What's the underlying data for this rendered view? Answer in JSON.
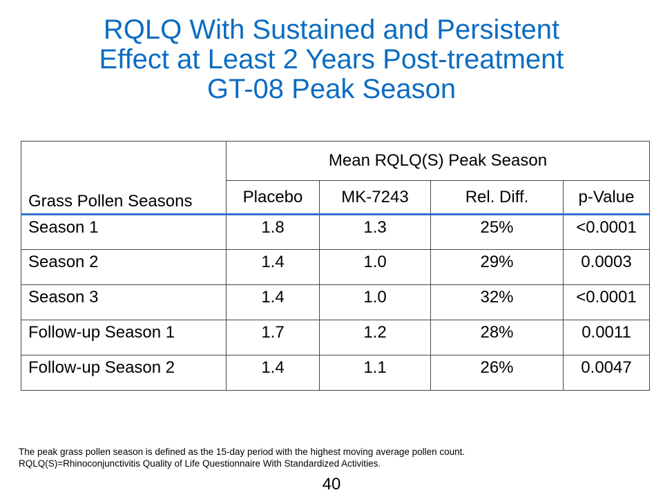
{
  "title": {
    "line1": "RQLQ With Sustained and Persistent",
    "line2": "Effect at Least 2 Years Post-treatment",
    "line3": "GT-08 Peak Season"
  },
  "table": {
    "row_header": "Grass Pollen Seasons",
    "group_header": "Mean RQLQ(S) Peak Season",
    "columns": [
      "Placebo",
      "MK-7243",
      "Rel. Diff.",
      "p-Value"
    ],
    "rows": [
      {
        "season": "Season 1",
        "placebo": "1.8",
        "mk7243": "1.3",
        "rel_diff": "25%",
        "p_value": "<0.0001"
      },
      {
        "season": "Season 2",
        "placebo": "1.4",
        "mk7243": "1.0",
        "rel_diff": "29%",
        "p_value": "0.0003"
      },
      {
        "season": "Season 3",
        "placebo": "1.4",
        "mk7243": "1.0",
        "rel_diff": "32%",
        "p_value": "<0.0001"
      },
      {
        "season": "Follow-up Season 1",
        "placebo": "1.7",
        "mk7243": "1.2",
        "rel_diff": "28%",
        "p_value": "0.0011"
      },
      {
        "season": "Follow-up Season 2",
        "placebo": "1.4",
        "mk7243": "1.1",
        "rel_diff": "26%",
        "p_value": "0.0047"
      }
    ]
  },
  "footnote": {
    "line1": "The peak grass pollen season is defined as the 15-day period with the highest moving average pollen count.",
    "line2": "RQLQ(S)=Rhinoconjunctivitis Quality of Life Questionnaire With Standardized Activities."
  },
  "page_number": "40",
  "colors": {
    "title": "#0a6cc2",
    "header_rule": "#2f6fcf"
  }
}
